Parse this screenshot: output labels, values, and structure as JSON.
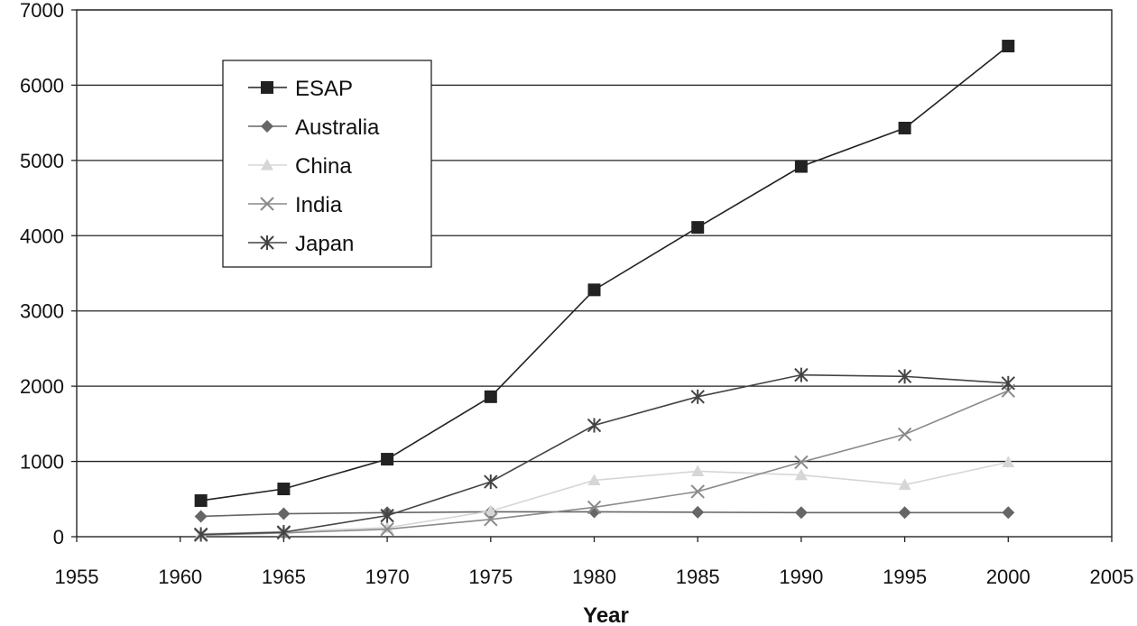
{
  "chart_data": {
    "type": "line",
    "title": "",
    "xlabel": "Year",
    "ylabel": "",
    "xlim": [
      1955,
      2005
    ],
    "ylim": [
      0,
      7000
    ],
    "xticks": [
      "1955",
      "1960",
      "1965",
      "1970",
      "1975",
      "1980",
      "1985",
      "1990",
      "1995",
      "2000",
      "2005"
    ],
    "yticks": [
      "0",
      "1000",
      "2000",
      "3000",
      "4000",
      "5000",
      "6000",
      "7000"
    ],
    "grid": "horizontal",
    "legend_position": "top-left",
    "x": [
      1961,
      1965,
      1970,
      1975,
      1980,
      1985,
      1990,
      1995,
      2000
    ],
    "series": [
      {
        "name": "ESAP",
        "marker": "square",
        "color": "#222222",
        "values": [
          480,
          635,
          1030,
          1860,
          3280,
          4110,
          4920,
          5430,
          6520
        ]
      },
      {
        "name": "Australia",
        "marker": "diamond",
        "color": "#666666",
        "values": [
          270,
          305,
          320,
          330,
          330,
          325,
          320,
          320,
          320
        ]
      },
      {
        "name": "China",
        "marker": "triangle",
        "color": "#d6d6d6",
        "values": [
          40,
          70,
          120,
          340,
          750,
          870,
          820,
          690,
          990
        ]
      },
      {
        "name": "India",
        "marker": "x",
        "color": "#8a8a8a",
        "values": [
          20,
          50,
          100,
          230,
          390,
          600,
          990,
          1360,
          1940
        ]
      },
      {
        "name": "Japan",
        "marker": "asterisk",
        "color": "#444444",
        "values": [
          30,
          60,
          280,
          730,
          1480,
          1860,
          2150,
          2130,
          2040
        ]
      }
    ]
  }
}
